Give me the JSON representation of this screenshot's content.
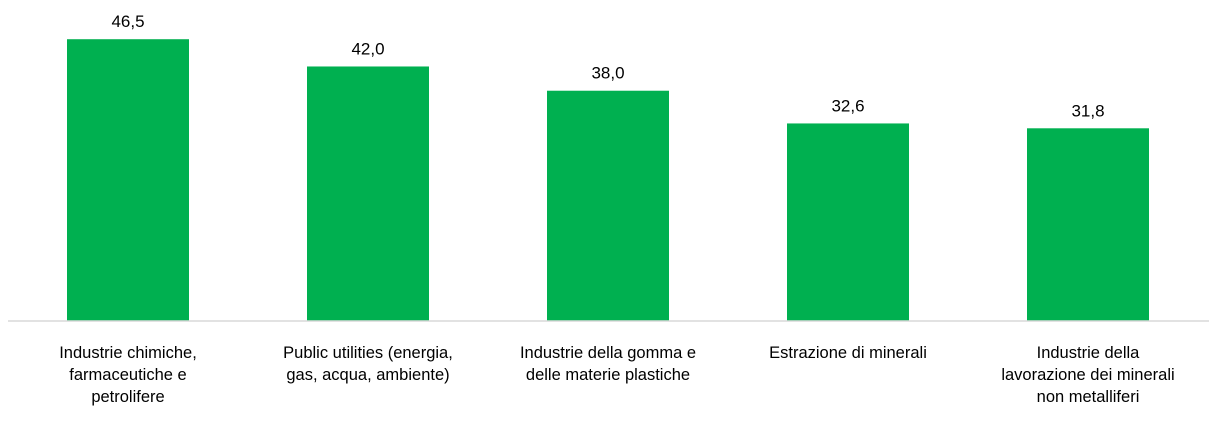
{
  "chart_data": {
    "type": "bar",
    "categories": [
      "Industrie chimiche,\nfarmaceutiche e\npetrolifere",
      "Public utilities (energia,\ngas, acqua, ambiente)",
      "Industrie della gomma e\ndelle materie plastiche",
      "Estrazione di minerali",
      "Industrie della\nlavorazione dei minerali\nnon metalliferi"
    ],
    "values": [
      46.5,
      42.0,
      38.0,
      32.6,
      31.8
    ],
    "value_labels": [
      "46,5",
      "42,0",
      "38,0",
      "32,6",
      "31,8"
    ],
    "title": "",
    "xlabel": "",
    "ylabel": "",
    "ylim": [
      0,
      50
    ],
    "grid": false,
    "legend": "none",
    "colors": {
      "bar": "#00B050",
      "axis": "#D9D9D9",
      "text": "#000000"
    }
  }
}
